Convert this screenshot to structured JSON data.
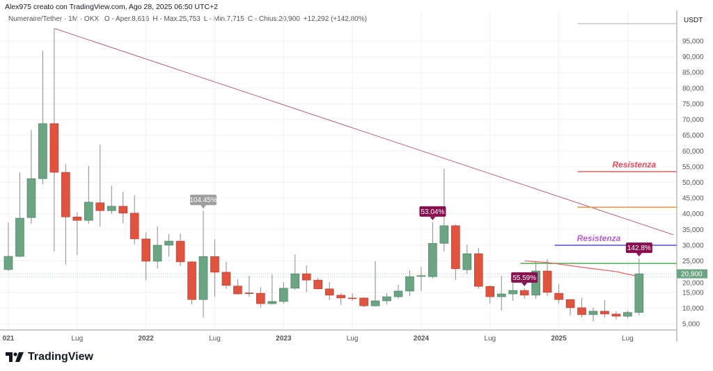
{
  "header": {
    "credit": "Alex975 creato con TradingView.com, Ago 28, 2025 06:50 UTC+2",
    "symbol": "Numeraire/Tether · 1M · OKX",
    "open": "O - Aper.8,616",
    "high": "H - Max.25,753",
    "low": "L - Min.7,715",
    "close": "C - Chius.20,900",
    "change": "+12,292 (+142,80%)"
  },
  "logo": "TradingView",
  "chart_data": {
    "type": "candlestick",
    "currency": "USDT",
    "ylim": [
      3000,
      101000
    ],
    "y_ticks": [
      "5,000",
      "10,000",
      "15,000",
      "20,000",
      "25,000",
      "30,000",
      "35,000",
      "40,000",
      "45,000",
      "50,000",
      "55,000",
      "60,000",
      "65,000",
      "70,000",
      "75,000",
      "80,000",
      "85,000",
      "90,000",
      "95,000"
    ],
    "x_ticks": [
      {
        "label": "021",
        "date": "2021-01"
      },
      {
        "label": "Lug",
        "date": "2021-07"
      },
      {
        "label": "2022",
        "date": "2022-01"
      },
      {
        "label": "Lug",
        "date": "2022-07"
      },
      {
        "label": "2023",
        "date": "2023-01"
      },
      {
        "label": "Lug",
        "date": "2023-07"
      },
      {
        "label": "2024",
        "date": "2024-01"
      },
      {
        "label": "Lug",
        "date": "2024-07"
      },
      {
        "label": "2025",
        "date": "2025-01"
      },
      {
        "label": "Lug",
        "date": "2025-07"
      }
    ],
    "start_month": "2021-01",
    "columns": [
      "open",
      "high",
      "low",
      "close"
    ],
    "candles": [
      [
        22250,
        37300,
        21800,
        26450
      ],
      [
        26450,
        53200,
        26200,
        38600
      ],
      [
        38800,
        66700,
        36800,
        51200
      ],
      [
        51200,
        91900,
        49400,
        68700
      ],
      [
        68700,
        99000,
        28000,
        53200
      ],
      [
        53200,
        55900,
        23800,
        39000
      ],
      [
        39000,
        40400,
        26900,
        37900
      ],
      [
        37900,
        55200,
        36800,
        43700
      ],
      [
        43500,
        62000,
        36000,
        41000
      ],
      [
        41000,
        49000,
        39900,
        42400
      ],
      [
        42400,
        47000,
        37000,
        40200
      ],
      [
        40200,
        45900,
        30200,
        32000
      ],
      [
        32000,
        34000,
        18900,
        24900
      ],
      [
        24900,
        36000,
        22500,
        30000
      ],
      [
        30000,
        33500,
        26400,
        31300
      ],
      [
        31300,
        33700,
        23400,
        24700
      ],
      [
        24700,
        25000,
        11200,
        12700
      ],
      [
        12700,
        41000,
        7000,
        26400
      ],
      [
        26400,
        31800,
        13600,
        21400
      ],
      [
        21400,
        24700,
        16100,
        17200
      ],
      [
        17000,
        19200,
        14300,
        14500
      ],
      [
        14800,
        20300,
        13600,
        14600
      ],
      [
        14700,
        16700,
        10100,
        11400
      ],
      [
        11400,
        20700,
        11200,
        12100
      ],
      [
        12100,
        18300,
        11400,
        16300
      ],
      [
        16300,
        27100,
        15800,
        20900
      ],
      [
        20900,
        23600,
        15000,
        18900
      ],
      [
        18900,
        19600,
        16000,
        16100
      ],
      [
        16100,
        18300,
        12500,
        14100
      ],
      [
        14100,
        14700,
        11000,
        13200
      ],
      [
        13200,
        14700,
        12300,
        13100
      ],
      [
        13200,
        13400,
        10300,
        10700
      ],
      [
        10700,
        24900,
        10500,
        12300
      ],
      [
        12300,
        14700,
        11200,
        13600
      ],
      [
        13600,
        17400,
        13000,
        15400
      ],
      [
        15400,
        22000,
        13800,
        20000
      ],
      [
        20100,
        23100,
        15400,
        20300
      ],
      [
        20000,
        37300,
        19400,
        30600
      ],
      [
        30600,
        54300,
        28000,
        36200
      ],
      [
        36200,
        36600,
        18900,
        22500
      ],
      [
        22200,
        30200,
        20900,
        27300
      ],
      [
        27300,
        29100,
        16100,
        16900
      ],
      [
        16900,
        17200,
        11400,
        13600
      ],
      [
        13600,
        20300,
        9200,
        14500
      ],
      [
        14500,
        18000,
        12300,
        15600
      ],
      [
        15600,
        16300,
        13000,
        14100
      ],
      [
        14100,
        25000,
        13000,
        21800
      ],
      [
        21800,
        25600,
        13800,
        15000
      ],
      [
        14700,
        17600,
        11400,
        12700
      ],
      [
        12700,
        12800,
        7700,
        10100
      ],
      [
        10100,
        13200,
        7000,
        7900
      ],
      [
        7900,
        10100,
        5700,
        9000
      ],
      [
        9000,
        12500,
        7000,
        8100
      ],
      [
        8100,
        9000,
        6300,
        7400
      ],
      [
        7400,
        9200,
        6800,
        8600
      ],
      [
        8616,
        25753,
        7715,
        20900
      ]
    ],
    "colors": {
      "up": "#6ba583",
      "down": "#e0533f",
      "wick": "#8a8a8a"
    },
    "last_price": {
      "label": "20,900",
      "color": "#6ba583"
    },
    "percent_labels": [
      {
        "text": "104.45%",
        "date": "2022-06",
        "color": "#9e9e9e"
      },
      {
        "text": "53.04%",
        "date": "2024-02",
        "color": "#880e4f"
      },
      {
        "text": "55.59%",
        "date": "2024-10",
        "color": "#880e4f"
      },
      {
        "text": "142.8%",
        "date": "2025-08",
        "color": "#880e4f"
      }
    ],
    "trendline": {
      "color": "#c2607a",
      "points": [
        {
          "date": "2021-05",
          "value": 99000
        },
        {
          "date": "2025-11",
          "value": 33300
        }
      ]
    },
    "horizontal_lines": [
      {
        "value": 100500,
        "from": "2025-03",
        "color": "#c8c8c8"
      },
      {
        "value": 53400,
        "from": "2025-03",
        "color": "#d9605a",
        "label": "Resistenza",
        "label_color": "#e8475c"
      },
      {
        "value": 42100,
        "from": "2025-03",
        "color": "#f0923a"
      },
      {
        "value": 30000,
        "from": "2025-01",
        "color": "#5048d8",
        "label": "Resistenza",
        "label_color": "#b45fd0"
      },
      {
        "value": 24200,
        "from": "2024-10",
        "color": "#4caf50"
      }
    ],
    "curve": {
      "color": "#f05a5a",
      "points": [
        {
          "date": "2024-10",
          "value": 25000
        },
        {
          "date": "2024-12",
          "value": 24500
        },
        {
          "date": "2025-03",
          "value": 23000
        },
        {
          "date": "2025-06",
          "value": 21600
        },
        {
          "date": "2025-08",
          "value": 20000
        }
      ]
    }
  }
}
